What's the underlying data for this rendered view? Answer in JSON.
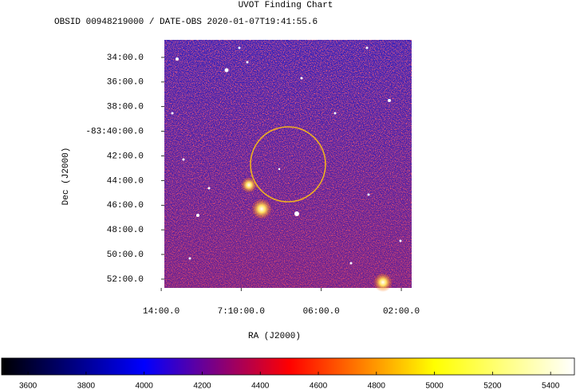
{
  "chart_data": {
    "type": "image",
    "title": "UVOT Finding Chart",
    "subtitle": "OBSID 00948219000 / DATE-OBS 2020-01-07T19:41:55.6",
    "xlabel": "RA (J2000)",
    "ylabel": "Dec (J2000)",
    "xlim": [
      7.2307,
      7.0247
    ],
    "xticks": [
      {
        "value": 7.2333,
        "label": "14:00.0"
      },
      {
        "value": 7.1667,
        "label": "7:10:00.0"
      },
      {
        "value": 7.1,
        "label": "06:00.0"
      },
      {
        "value": 7.0333,
        "label": "02:00.0"
      }
    ],
    "ylim": [
      -83.8786,
      -83.543
    ],
    "yticks": [
      {
        "value": -83.5667,
        "label": "34:00.0"
      },
      {
        "value": -83.6,
        "label": "36:00.0"
      },
      {
        "value": -83.6333,
        "label": "38:00.0"
      },
      {
        "value": -83.6667,
        "label": "-83:40:00.0"
      },
      {
        "value": -83.7,
        "label": "42:00.0"
      },
      {
        "value": -83.7333,
        "label": "44:00.0"
      },
      {
        "value": -83.7667,
        "label": "46:00.0"
      },
      {
        "value": -83.8,
        "label": "48:00.0"
      },
      {
        "value": -83.8333,
        "label": "50:00.0"
      },
      {
        "value": -83.8667,
        "label": "52:00.0"
      }
    ],
    "colorbar": {
      "lim": [
        3509,
        5482
      ],
      "ticks": [
        3600,
        3800,
        4000,
        4200,
        4400,
        4600,
        4800,
        5000,
        5200,
        5400
      ],
      "colormap": [
        "#000000",
        "#0000ff",
        "#ff0000",
        "#ffff00",
        "#ffffff"
      ]
    }
  }
}
